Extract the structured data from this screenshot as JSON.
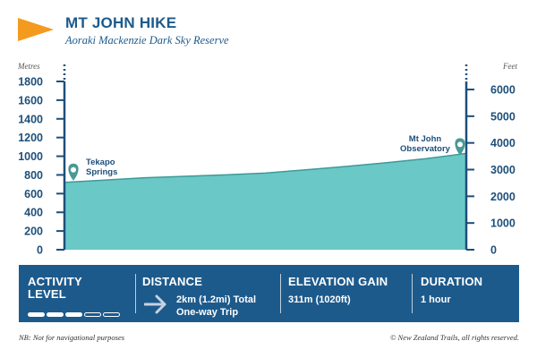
{
  "header": {
    "title": "MT JOHN HIKE",
    "subtitle": "Aoraki Mackenzie Dark Sky Reserve"
  },
  "colors": {
    "brand": "#1d5a8c",
    "accent": "#f39a1f",
    "profile_fill": "#6ac9c7",
    "profile_line": "#3d9a98",
    "marker": "#4a9995"
  },
  "chart_data": {
    "type": "area",
    "ylabel_left": "Metres",
    "ylabel_right": "Feet",
    "ylim": [
      0,
      1800
    ],
    "yticks_left": [
      0,
      200,
      400,
      600,
      800,
      1000,
      1200,
      1400,
      1600,
      1800
    ],
    "ylim_right": [
      0,
      6000
    ],
    "yticks_right": [
      0,
      1000,
      2000,
      3000,
      4000,
      5000,
      6000
    ],
    "x": [
      0,
      0.2,
      0.4,
      0.6,
      0.8,
      1.0,
      1.2,
      1.4,
      1.6,
      1.8,
      2.0
    ],
    "series": [
      {
        "values": [
          720,
          745,
          770,
          785,
          800,
          820,
          855,
          890,
          930,
          975,
          1030
        ]
      }
    ],
    "annotations": [
      {
        "label": [
          "Tekapo",
          "Springs"
        ],
        "x": 0,
        "y": 720
      },
      {
        "label": [
          "Mt John",
          "Observatory"
        ],
        "x": 2.0,
        "y": 1030
      }
    ]
  },
  "panel": {
    "activity_title": "ACTIVITY",
    "activity_title2": "LEVEL",
    "activity_level": 3,
    "activity_max": 5,
    "distance_title": "DISTANCE",
    "distance_line1": "2km (1.2mi) Total",
    "distance_line2": "One-way Trip",
    "elevation_title": "ELEVATION GAIN",
    "elevation_value": "311m (1020ft)",
    "duration_title": "DURATION",
    "duration_value": "1 hour"
  },
  "footer": {
    "note": "NB: Not for navigational purposes",
    "copyright": "© New Zealand Trails, all rights reserved."
  }
}
